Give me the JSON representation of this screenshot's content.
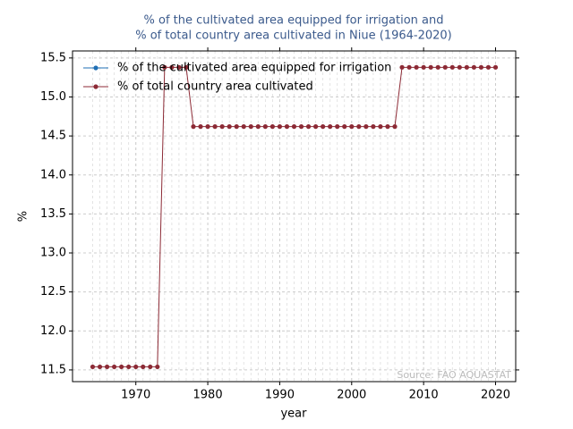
{
  "chart_data": {
    "type": "line",
    "title": [
      "% of the cultivated area equipped for irrigation and",
      "% of total country area cultivated in Niue (1964-2020)"
    ],
    "xlabel": "year",
    "ylabel": "%",
    "annotation": "Source: FAO AQUASTAT",
    "x": [
      1964,
      1965,
      1966,
      1967,
      1968,
      1969,
      1970,
      1971,
      1972,
      1973,
      1974,
      1975,
      1976,
      1977,
      1978,
      1979,
      1980,
      1981,
      1982,
      1983,
      1984,
      1985,
      1986,
      1987,
      1988,
      1989,
      1990,
      1991,
      1992,
      1993,
      1994,
      1995,
      1996,
      1997,
      1998,
      1999,
      2000,
      2001,
      2002,
      2003,
      2004,
      2005,
      2006,
      2007,
      2008,
      2009,
      2010,
      2011,
      2012,
      2013,
      2014,
      2015,
      2016,
      2017,
      2018,
      2019,
      2020
    ],
    "series": [
      {
        "name": "% of the cultivated area equipped for irrigation",
        "color": "#1f6fb4",
        "values": [
          null,
          null,
          null,
          null,
          null,
          null,
          null,
          null,
          null,
          null,
          null,
          null,
          null,
          null,
          null,
          null,
          null,
          null,
          null,
          null,
          null,
          null,
          null,
          null,
          null,
          null,
          null,
          null,
          null,
          null,
          null,
          null,
          null,
          null,
          null,
          null,
          null,
          null,
          null,
          null,
          null,
          null,
          null,
          null,
          null,
          null,
          null,
          null,
          null,
          null,
          null,
          null,
          null,
          null,
          null,
          null,
          null
        ]
      },
      {
        "name": "% of total country area cultivated",
        "color": "#8c2a35",
        "values": [
          11.54,
          11.54,
          11.54,
          11.54,
          11.54,
          11.54,
          11.54,
          11.54,
          11.54,
          11.54,
          15.38,
          15.38,
          15.38,
          15.38,
          14.62,
          14.62,
          14.62,
          14.62,
          14.62,
          14.62,
          14.62,
          14.62,
          14.62,
          14.62,
          14.62,
          14.62,
          14.62,
          14.62,
          14.62,
          14.62,
          14.62,
          14.62,
          14.62,
          14.62,
          14.62,
          14.62,
          14.62,
          14.62,
          14.62,
          14.62,
          14.62,
          14.62,
          14.62,
          15.38,
          15.38,
          15.38,
          15.38,
          15.38,
          15.38,
          15.38,
          15.38,
          15.38,
          15.38,
          15.38,
          15.38,
          15.38,
          15.38
        ]
      }
    ],
    "xlim": [
      1961.2,
      2022.8
    ],
    "ylim": [
      11.35,
      15.59
    ],
    "xticks": [
      1970,
      1980,
      1990,
      2000,
      2010,
      2020
    ],
    "yticks": [
      11.5,
      {
        "value": 12,
        "label": "12.0"
      },
      12.5,
      {
        "value": 13,
        "label": "13.0"
      },
      13.5,
      {
        "value": 14,
        "label": "14.0"
      },
      14.5,
      {
        "value": 15,
        "label": "15.0"
      },
      15.5
    ],
    "grid": true,
    "legend": "upper left"
  }
}
